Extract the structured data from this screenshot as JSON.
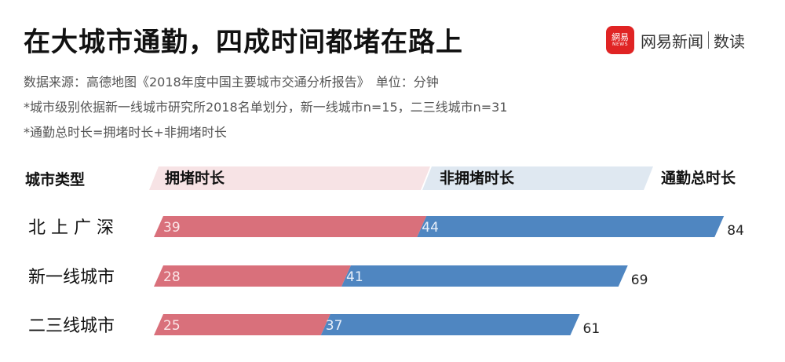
{
  "title": "在大城市通勤，四成时间都堵在路上",
  "brand": {
    "logo_text": "網易",
    "logo_sub": "NEWS",
    "name": "网易新闻",
    "sub": "数读"
  },
  "notes": [
    "数据来源：高德地图《2018年度中国主要城市交通分析报告》　单位：分钟",
    "*城市级别依据新一线城市研究所2018名单划分，新一线城市n=15，二三线城市n=31",
    "*通勤总时长=拥堵时长+非拥堵时长"
  ],
  "colors": {
    "congested": "#d9707b",
    "non_congested": "#4f86c1",
    "congested_header": "#f7e3e5",
    "non_congested_header": "#dfe8f1"
  },
  "chart_data": {
    "type": "bar",
    "orientation": "horizontal",
    "stacked": true,
    "category_header": "城市类型",
    "total_header": "通勤总时长",
    "categories": [
      "北 上 广 深",
      "新一线城市",
      "二三线城市"
    ],
    "series": [
      {
        "name": "拥堵时长",
        "values": [
          39,
          28,
          25
        ]
      },
      {
        "name": "非拥堵时长",
        "values": [
          44,
          41,
          37
        ]
      }
    ],
    "totals": [
      84,
      69,
      61
    ]
  }
}
